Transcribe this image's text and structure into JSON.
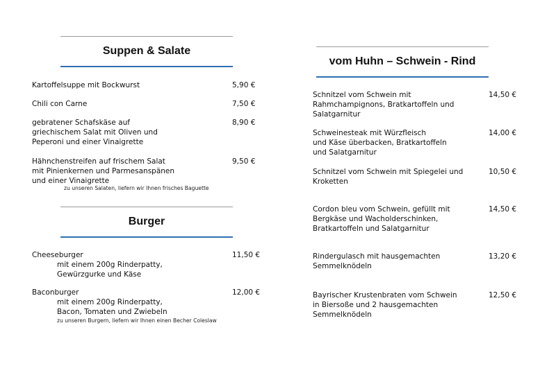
{
  "left": {
    "sections": [
      {
        "title": "Suppen & Salate",
        "items": [
          {
            "lines": [
              "Kartoffelsuppe mit Bockwurst"
            ],
            "price": "5,90 €"
          },
          {
            "lines": [
              "Chili con Carne"
            ],
            "price": "7,50 €"
          },
          {
            "lines": [
              "gebratener Schafskäse auf",
              "griechischem Salat mit Oliven und",
              "Peperoni und einer Vinaigrette"
            ],
            "price": "8,90 €"
          },
          {
            "lines": [
              "Hähnchenstreifen auf frischem Salat",
              "mit Pinienkernen und Parmesanspänen",
              "und einer Vinaigrette"
            ],
            "price": "9,50 €"
          }
        ],
        "note": "zu unseren Salaten, liefern wir Ihnen frisches Baguette"
      },
      {
        "title": "Burger",
        "items": [
          {
            "lines": [
              "Cheeseburger",
              "mit einem 200g Rinderpatty,",
              "Gewürzgurke und Käse"
            ],
            "price": "11,50 €"
          },
          {
            "lines": [
              "Baconburger",
              "mit einem 200g Rinderpatty,",
              "Bacon, Tomaten und Zwiebeln"
            ],
            "price": "12,00 €"
          }
        ],
        "note": "zu unseren Burgern, liefern wir Ihnen einen Becher Coleslaw"
      }
    ]
  },
  "right": {
    "sections": [
      {
        "title": "vom Huhn – Schwein - Rind",
        "items": [
          {
            "lines": [
              "Schnitzel vom Schwein mit",
              "Rahmchampignons, Bratkartoffeln und",
              "Salatgarnitur"
            ],
            "price": "14,50 €"
          },
          {
            "lines": [
              "Schweinesteak mit Würzfleisch",
              "und Käse überbacken, Bratkartoffeln",
              "und Salatgarnitur"
            ],
            "price": "14,00 €"
          },
          {
            "lines": [
              "Schnitzel vom Schwein mit Spiegelei und",
              "Kroketten"
            ],
            "price": "10,50 €"
          },
          {
            "lines": [
              "Cordon bleu vom Schwein, gefüllt mit",
              "Bergkäse und Wacholderschinken,",
              "Bratkartoffeln und Salatgarnitur"
            ],
            "price": "14,50 €"
          },
          {
            "lines": [
              "Rindergulasch mit hausgemachten",
              "Semmelknödeln"
            ],
            "price": "13,20 €"
          },
          {
            "lines": [
              "Bayrischer Krustenbraten vom Schwein",
              "in Biersoße und 2 hausgemachten",
              "Semmelknödeln"
            ],
            "price": "12,50 €"
          }
        ]
      }
    ]
  },
  "colors": {
    "rule_gray": "#9a9a9a",
    "rule_blue": "#2e6fb0"
  }
}
